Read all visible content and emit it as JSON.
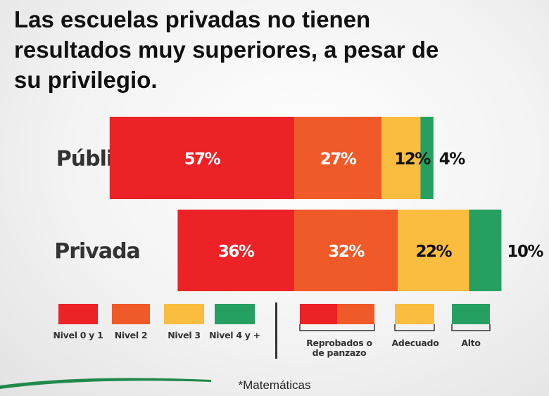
{
  "title": {
    "lines": [
      "Las escuelas privadas no tienen",
      "resultados muy superiores, a pesar de",
      "su privilegio."
    ]
  },
  "colors": {
    "nivel01": "#ed2227",
    "nivel2": "#f05a28",
    "nivel3": "#fbbd3f",
    "nivel4": "#26a060",
    "text_dark": "#111111",
    "text_label": "#333333"
  },
  "chart_data": {
    "type": "bar",
    "orientation": "horizontal",
    "stacked": true,
    "categories": [
      "Pública",
      "Privada"
    ],
    "series": [
      {
        "name": "Nivel 0 y 1",
        "values": [
          57,
          36
        ],
        "color": "#ed2227"
      },
      {
        "name": "Nivel 2",
        "values": [
          27,
          32
        ],
        "color": "#f05a28"
      },
      {
        "name": "Nivel 3",
        "values": [
          12,
          22
        ],
        "color": "#fbbd3f"
      },
      {
        "name": "Nivel 4 y +",
        "values": [
          4,
          10
        ],
        "color": "#26a060"
      }
    ],
    "value_labels": [
      [
        "57%",
        "27%",
        "12%",
        "4%"
      ],
      [
        "36%",
        "32%",
        "22%",
        "10%"
      ]
    ],
    "unit": "%",
    "legend": {
      "levels": [
        "Nivel 0 y 1",
        "Nivel 2",
        "Nivel 3",
        "Nivel 4 y +"
      ],
      "groups": [
        {
          "label_lines": [
            "Reprobados o",
            "de panzazo"
          ],
          "colors": [
            "#ed2227",
            "#f05a28"
          ]
        },
        {
          "label_lines": [
            "Adecuado"
          ],
          "colors": [
            "#fbbd3f"
          ]
        },
        {
          "label_lines": [
            "Alto"
          ],
          "colors": [
            "#26a060"
          ]
        }
      ],
      "placement": "bottom"
    },
    "footnote": "*Matemáticas"
  }
}
